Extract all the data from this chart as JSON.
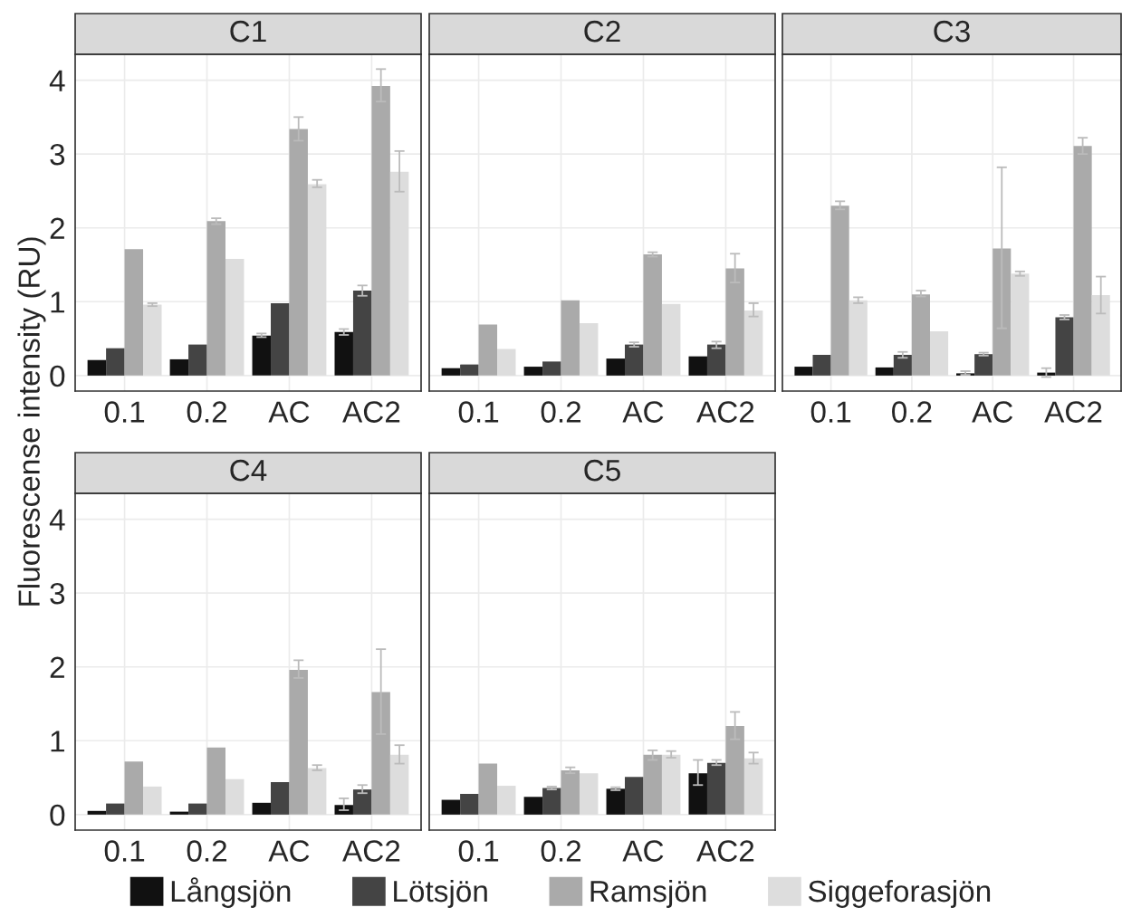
{
  "chart_data": [
    {
      "type": "bar",
      "title": "C1",
      "ylabel": "Fluorescense intensity (RU)",
      "categories": [
        "0.1",
        "0.2",
        "AC",
        "AC2"
      ],
      "ylim": [
        -0.21,
        4.35
      ],
      "yticks": [
        0,
        1,
        2,
        3,
        4
      ],
      "grid": true,
      "legend": "bottom",
      "series": [
        {
          "name": "Långsjön",
          "color": "#111111",
          "values": [
            0.21,
            0.22,
            0.54,
            0.59
          ],
          "errors": [
            null,
            null,
            [
              0.52,
              0.57
            ],
            [
              0.55,
              0.63
            ]
          ]
        },
        {
          "name": "Lötsjön",
          "color": "#444444",
          "values": [
            0.37,
            0.42,
            0.98,
            1.15
          ],
          "errors": [
            null,
            null,
            null,
            [
              1.08,
              1.22
            ]
          ]
        },
        {
          "name": "Ramsjön",
          "color": "#aaaaaa",
          "values": [
            1.71,
            2.09,
            3.34,
            3.92
          ],
          "errors": [
            null,
            [
              2.05,
              2.13
            ],
            [
              3.18,
              3.5
            ],
            [
              3.71,
              4.15
            ]
          ]
        },
        {
          "name": "Siggeforasjön",
          "color": "#dddddd",
          "values": [
            0.96,
            1.58,
            2.59,
            2.76
          ],
          "errors": [
            [
              0.94,
              0.98
            ],
            null,
            [
              2.55,
              2.65
            ],
            [
              2.49,
              3.04
            ]
          ]
        }
      ]
    },
    {
      "type": "bar",
      "title": "C2",
      "categories": [
        "0.1",
        "0.2",
        "AC",
        "AC2"
      ],
      "ylim": [
        -0.21,
        4.35
      ],
      "yticks": [
        0,
        1,
        2,
        3,
        4
      ],
      "grid": true,
      "tick_labels": "x",
      "series": [
        {
          "color": "#111111",
          "values": [
            0.1,
            0.12,
            0.23,
            0.26
          ]
        },
        {
          "color": "#444444",
          "values": [
            0.15,
            0.19,
            0.42,
            0.42
          ],
          "errors": [
            null,
            null,
            [
              0.39,
              0.45
            ],
            [
              0.37,
              0.46
            ]
          ]
        },
        {
          "color": "#aaaaaa",
          "values": [
            0.69,
            1.02,
            1.64,
            1.45
          ],
          "errors": [
            null,
            null,
            [
              1.61,
              1.67
            ],
            [
              1.26,
              1.65
            ]
          ]
        },
        {
          "color": "#dddddd",
          "values": [
            0.36,
            0.71,
            0.97,
            0.88
          ],
          "errors": [
            null,
            null,
            null,
            [
              0.8,
              0.98
            ]
          ]
        }
      ]
    },
    {
      "type": "bar",
      "title": "C3",
      "categories": [
        "0.1",
        "0.2",
        "AC",
        "AC2"
      ],
      "ylim": [
        -0.21,
        4.35
      ],
      "yticks": [
        0,
        1,
        2,
        3,
        4
      ],
      "grid": true,
      "tick_labels": "x",
      "series": [
        {
          "color": "#111111",
          "values": [
            0.12,
            0.11,
            0.03,
            0.04
          ],
          "errors": [
            null,
            null,
            [
              0.01,
              0.06
            ],
            [
              -0.02,
              0.1
            ]
          ]
        },
        {
          "color": "#444444",
          "values": [
            0.28,
            0.28,
            0.29,
            0.79
          ],
          "errors": [
            null,
            [
              0.24,
              0.32
            ],
            [
              0.27,
              0.31
            ],
            [
              0.76,
              0.82
            ]
          ]
        },
        {
          "color": "#aaaaaa",
          "values": [
            2.3,
            1.1,
            1.72,
            3.11
          ],
          "errors": [
            [
              2.25,
              2.36
            ],
            [
              1.07,
              1.15
            ],
            [
              0.64,
              2.82
            ],
            [
              3.0,
              3.22
            ]
          ]
        },
        {
          "color": "#dddddd",
          "values": [
            1.02,
            0.6,
            1.38,
            1.09
          ],
          "errors": [
            [
              0.98,
              1.06
            ],
            null,
            [
              1.35,
              1.41
            ],
            [
              0.84,
              1.34
            ]
          ]
        }
      ]
    },
    {
      "type": "bar",
      "title": "C4",
      "categories": [
        "0.1",
        "0.2",
        "AC",
        "AC2"
      ],
      "ylim": [
        -0.21,
        4.35
      ],
      "yticks": [
        0,
        1,
        2,
        3,
        4
      ],
      "grid": true,
      "series": [
        {
          "color": "#111111",
          "values": [
            0.05,
            0.04,
            0.16,
            0.13
          ],
          "errors": [
            null,
            null,
            null,
            [
              0.06,
              0.22
            ]
          ]
        },
        {
          "color": "#444444",
          "values": [
            0.15,
            0.15,
            0.44,
            0.34
          ],
          "errors": [
            null,
            null,
            null,
            [
              0.29,
              0.4
            ]
          ]
        },
        {
          "color": "#aaaaaa",
          "values": [
            0.72,
            0.91,
            1.96,
            1.66
          ],
          "errors": [
            null,
            null,
            [
              1.85,
              2.09
            ],
            [
              1.09,
              2.24
            ]
          ]
        },
        {
          "color": "#dddddd",
          "values": [
            0.38,
            0.48,
            0.63,
            0.81
          ],
          "errors": [
            null,
            null,
            [
              0.6,
              0.67
            ],
            [
              0.69,
              0.94
            ]
          ]
        }
      ]
    },
    {
      "type": "bar",
      "title": "C5",
      "categories": [
        "0.1",
        "0.2",
        "AC",
        "AC2"
      ],
      "ylim": [
        -0.21,
        4.35
      ],
      "yticks": [
        0,
        1,
        2,
        3,
        4
      ],
      "grid": true,
      "tick_labels": "x",
      "series": [
        {
          "color": "#111111",
          "values": [
            0.2,
            0.24,
            0.35,
            0.56
          ],
          "errors": [
            null,
            null,
            [
              0.33,
              0.37
            ],
            [
              0.4,
              0.74
            ]
          ]
        },
        {
          "color": "#444444",
          "values": [
            0.28,
            0.36,
            0.51,
            0.7
          ],
          "errors": [
            null,
            [
              0.34,
              0.38
            ],
            null,
            [
              0.67,
              0.74
            ]
          ]
        },
        {
          "color": "#aaaaaa",
          "values": [
            0.69,
            0.6,
            0.81,
            1.2
          ],
          "errors": [
            null,
            [
              0.56,
              0.64
            ],
            [
              0.74,
              0.87
            ],
            [
              1.02,
              1.39
            ]
          ]
        },
        {
          "color": "#dddddd",
          "values": [
            0.39,
            0.56,
            0.81,
            0.76
          ],
          "errors": [
            null,
            null,
            [
              0.77,
              0.86
            ],
            [
              0.69,
              0.84
            ]
          ]
        }
      ]
    }
  ]
}
